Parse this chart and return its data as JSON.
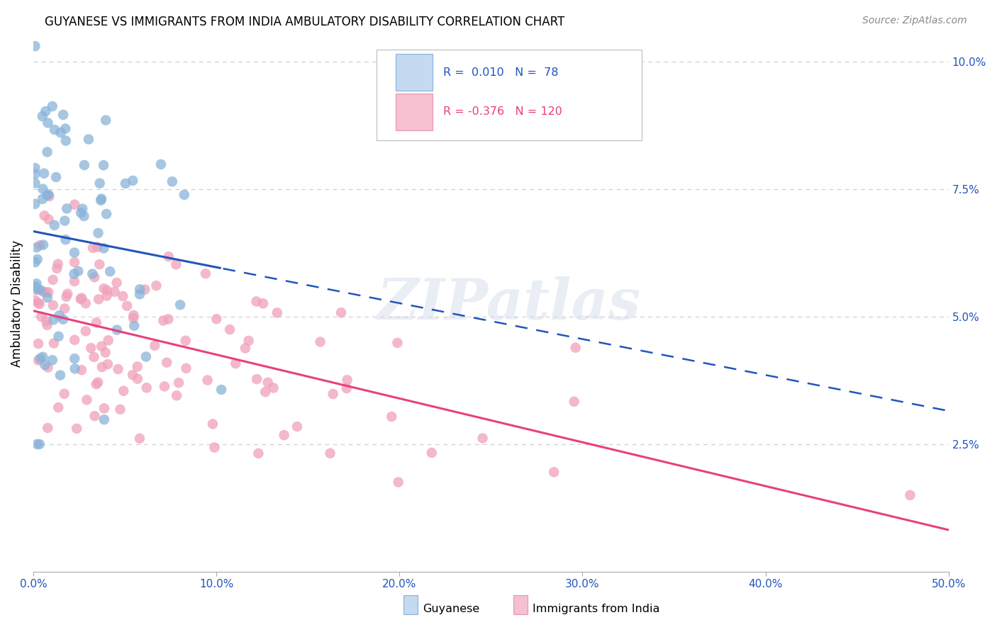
{
  "title": "GUYANESE VS IMMIGRANTS FROM INDIA AMBULATORY DISABILITY CORRELATION CHART",
  "source": "Source: ZipAtlas.com",
  "ylabel": "Ambulatory Disability",
  "xlim": [
    0.0,
    0.5
  ],
  "ylim": [
    0.0,
    0.105
  ],
  "xtick_vals": [
    0.0,
    0.1,
    0.2,
    0.3,
    0.4,
    0.5
  ],
  "xtick_labels": [
    "0.0%",
    "10.0%",
    "20.0%",
    "30.0%",
    "40.0%",
    "50.0%"
  ],
  "ytick_vals": [
    0.025,
    0.05,
    0.075,
    0.1
  ],
  "ytick_labels": [
    "2.5%",
    "5.0%",
    "7.5%",
    "10.0%"
  ],
  "R_guyanese": 0.01,
  "N_guyanese": 78,
  "R_india": -0.376,
  "N_india": 120,
  "color_guyanese": "#89b3d9",
  "color_india": "#f0a0b8",
  "line_color_guyanese": "#2255bb",
  "line_color_india": "#e84080",
  "legend_fill_guyanese": "#c5d9f0",
  "legend_fill_india": "#f5c0d0",
  "legend_edge_guyanese": "#89b3d9",
  "legend_edge_india": "#e895b0",
  "background_color": "#ffffff",
  "grid_color": "#cccccc",
  "title_fontsize": 12,
  "source_fontsize": 10,
  "axis_label_color_right": "#2255bb",
  "axis_label_color_bottom": "#2255bb",
  "watermark": "ZIPatlas",
  "seed": 99
}
